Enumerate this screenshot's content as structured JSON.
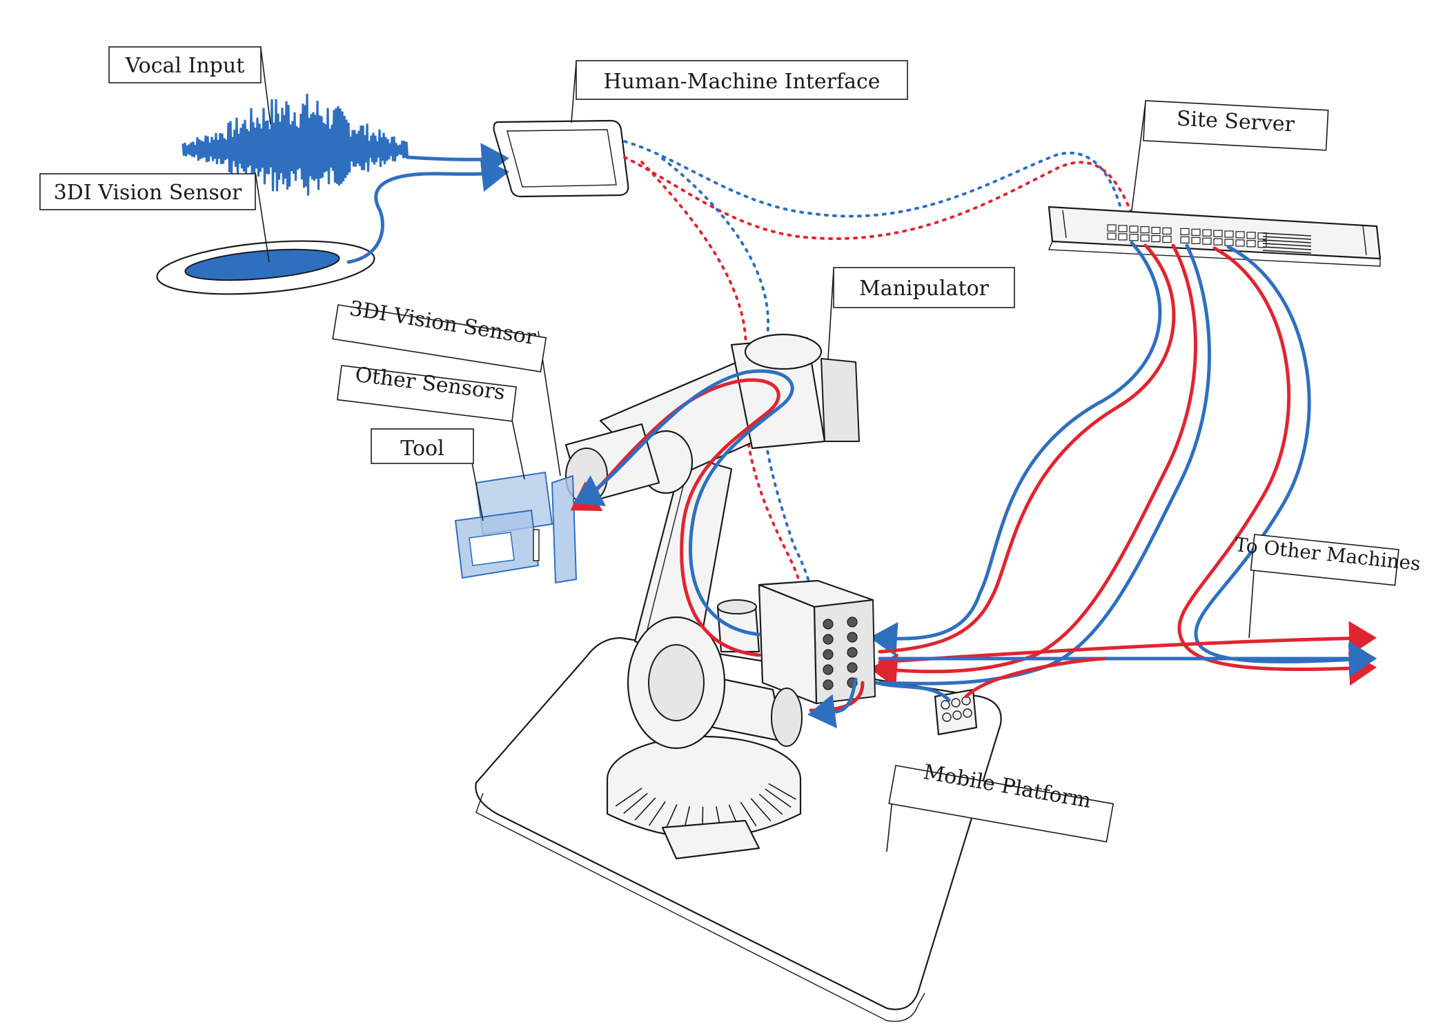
{
  "labels": {
    "vocal_input": "Vocal Input",
    "vision_sensor_station": "3DI Vision Sensor",
    "hmi": "Human-Machine Interface",
    "site_server": "Site Server",
    "manipulator": "Manipulator",
    "vision_sensor_arm": "3DI Vision Sensor",
    "other_sensors": "Other Sensors",
    "tool": "Tool",
    "to_other_machines": "To Other Machines",
    "mobile_platform": "Mobile Platform"
  },
  "colors": {
    "red_link": "#e02530",
    "blue_link": "#2f6fc0",
    "tool_blue": "#a9c4e6",
    "ink": "#1a1a1a"
  }
}
